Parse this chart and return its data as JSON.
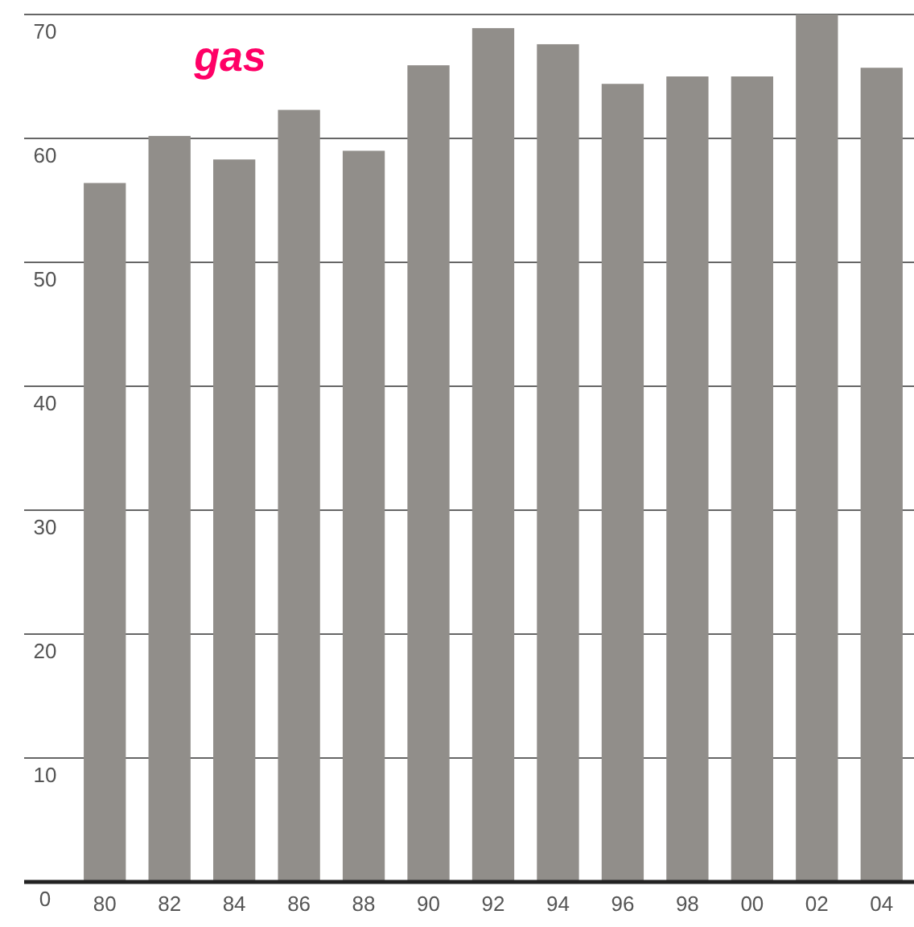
{
  "chart_data": {
    "type": "bar",
    "title": "gas",
    "categories": [
      "80",
      "82",
      "84",
      "86",
      "88",
      "90",
      "92",
      "94",
      "96",
      "98",
      "00",
      "02",
      "04"
    ],
    "values": [
      56.4,
      60.2,
      58.3,
      62.3,
      59,
      65.9,
      68.9,
      67.6,
      64.4,
      65,
      65,
      70,
      65.7
    ],
    "color": "#918e8a",
    "ylim": [
      0,
      70
    ],
    "yticks": [
      0,
      10,
      20,
      30,
      40,
      50,
      60,
      70
    ],
    "grid": "y"
  }
}
